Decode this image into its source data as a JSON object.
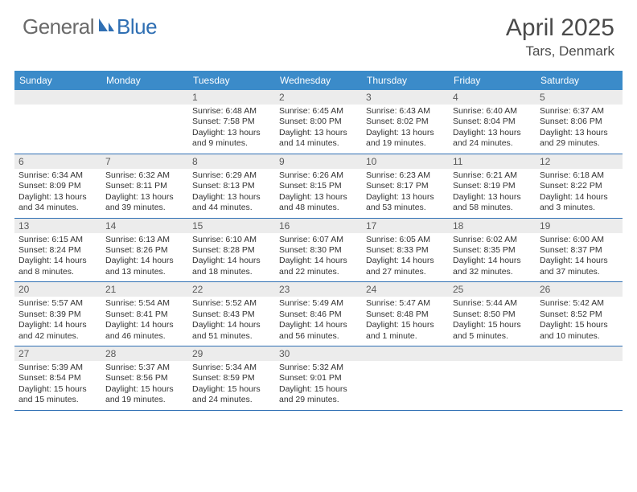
{
  "logo": {
    "part1": "General",
    "part2": "Blue"
  },
  "title": "April 2025",
  "location": "Tars, Denmark",
  "colors": {
    "header_bg": "#3b8bc9",
    "border": "#2f6fb3",
    "daynum_bg": "#ececec",
    "logo_gray": "#6a6a6a",
    "logo_blue": "#2f6fb3"
  },
  "weekdays": [
    "Sunday",
    "Monday",
    "Tuesday",
    "Wednesday",
    "Thursday",
    "Friday",
    "Saturday"
  ],
  "grid": [
    [
      null,
      null,
      {
        "n": "1",
        "sr": "6:48 AM",
        "ss": "7:58 PM",
        "dl": "13 hours and 9 minutes."
      },
      {
        "n": "2",
        "sr": "6:45 AM",
        "ss": "8:00 PM",
        "dl": "13 hours and 14 minutes."
      },
      {
        "n": "3",
        "sr": "6:43 AM",
        "ss": "8:02 PM",
        "dl": "13 hours and 19 minutes."
      },
      {
        "n": "4",
        "sr": "6:40 AM",
        "ss": "8:04 PM",
        "dl": "13 hours and 24 minutes."
      },
      {
        "n": "5",
        "sr": "6:37 AM",
        "ss": "8:06 PM",
        "dl": "13 hours and 29 minutes."
      }
    ],
    [
      {
        "n": "6",
        "sr": "6:34 AM",
        "ss": "8:09 PM",
        "dl": "13 hours and 34 minutes."
      },
      {
        "n": "7",
        "sr": "6:32 AM",
        "ss": "8:11 PM",
        "dl": "13 hours and 39 minutes."
      },
      {
        "n": "8",
        "sr": "6:29 AM",
        "ss": "8:13 PM",
        "dl": "13 hours and 44 minutes."
      },
      {
        "n": "9",
        "sr": "6:26 AM",
        "ss": "8:15 PM",
        "dl": "13 hours and 48 minutes."
      },
      {
        "n": "10",
        "sr": "6:23 AM",
        "ss": "8:17 PM",
        "dl": "13 hours and 53 minutes."
      },
      {
        "n": "11",
        "sr": "6:21 AM",
        "ss": "8:19 PM",
        "dl": "13 hours and 58 minutes."
      },
      {
        "n": "12",
        "sr": "6:18 AM",
        "ss": "8:22 PM",
        "dl": "14 hours and 3 minutes."
      }
    ],
    [
      {
        "n": "13",
        "sr": "6:15 AM",
        "ss": "8:24 PM",
        "dl": "14 hours and 8 minutes."
      },
      {
        "n": "14",
        "sr": "6:13 AM",
        "ss": "8:26 PM",
        "dl": "14 hours and 13 minutes."
      },
      {
        "n": "15",
        "sr": "6:10 AM",
        "ss": "8:28 PM",
        "dl": "14 hours and 18 minutes."
      },
      {
        "n": "16",
        "sr": "6:07 AM",
        "ss": "8:30 PM",
        "dl": "14 hours and 22 minutes."
      },
      {
        "n": "17",
        "sr": "6:05 AM",
        "ss": "8:33 PM",
        "dl": "14 hours and 27 minutes."
      },
      {
        "n": "18",
        "sr": "6:02 AM",
        "ss": "8:35 PM",
        "dl": "14 hours and 32 minutes."
      },
      {
        "n": "19",
        "sr": "6:00 AM",
        "ss": "8:37 PM",
        "dl": "14 hours and 37 minutes."
      }
    ],
    [
      {
        "n": "20",
        "sr": "5:57 AM",
        "ss": "8:39 PM",
        "dl": "14 hours and 42 minutes."
      },
      {
        "n": "21",
        "sr": "5:54 AM",
        "ss": "8:41 PM",
        "dl": "14 hours and 46 minutes."
      },
      {
        "n": "22",
        "sr": "5:52 AM",
        "ss": "8:43 PM",
        "dl": "14 hours and 51 minutes."
      },
      {
        "n": "23",
        "sr": "5:49 AM",
        "ss": "8:46 PM",
        "dl": "14 hours and 56 minutes."
      },
      {
        "n": "24",
        "sr": "5:47 AM",
        "ss": "8:48 PM",
        "dl": "15 hours and 1 minute."
      },
      {
        "n": "25",
        "sr": "5:44 AM",
        "ss": "8:50 PM",
        "dl": "15 hours and 5 minutes."
      },
      {
        "n": "26",
        "sr": "5:42 AM",
        "ss": "8:52 PM",
        "dl": "15 hours and 10 minutes."
      }
    ],
    [
      {
        "n": "27",
        "sr": "5:39 AM",
        "ss": "8:54 PM",
        "dl": "15 hours and 15 minutes."
      },
      {
        "n": "28",
        "sr": "5:37 AM",
        "ss": "8:56 PM",
        "dl": "15 hours and 19 minutes."
      },
      {
        "n": "29",
        "sr": "5:34 AM",
        "ss": "8:59 PM",
        "dl": "15 hours and 24 minutes."
      },
      {
        "n": "30",
        "sr": "5:32 AM",
        "ss": "9:01 PM",
        "dl": "15 hours and 29 minutes."
      },
      null,
      null,
      null
    ]
  ],
  "labels": {
    "sunrise": "Sunrise:",
    "sunset": "Sunset:",
    "daylight": "Daylight:"
  }
}
